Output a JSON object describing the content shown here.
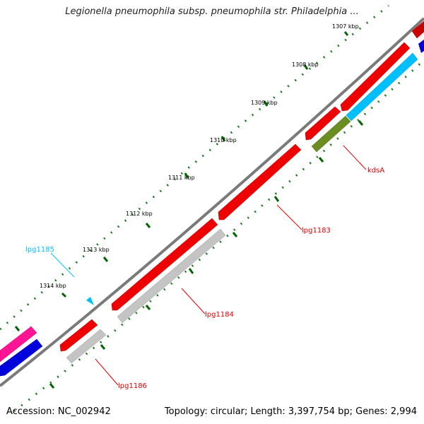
{
  "header": {
    "title": "Legionella pneumophila subsp. pneumophila str. Philadelphia ..."
  },
  "footer": {
    "accession": "Accession: NC_002942",
    "stats": "Topology: circular; Length: 3,397,754 bp; Genes: 2,994"
  },
  "ruler": {
    "ticks": [
      "1307 kbp",
      "1308 kbp",
      "1309 kbp",
      "1310 kbp",
      "1311 kbp",
      "1312 kbp",
      "1313 kbp",
      "1314 kbp"
    ]
  },
  "gene_labels": [
    "kdsA",
    "lpg1183",
    "lpg1184",
    "lpg1185",
    "lpg1186"
  ],
  "colors": {
    "backbone": "#7a7a7a",
    "forward_cds": "#ff0000",
    "reverse_cds": "#0000ee",
    "cyan_track": "#00bfff",
    "pink_track": "#ff1493",
    "olive_track": "#6b8e23",
    "gray_track": "#c0c0c0",
    "tick_major": "#006400",
    "tick_minor": "#008000",
    "label_red": "#dd0000",
    "label_cyan": "#00bfff"
  }
}
